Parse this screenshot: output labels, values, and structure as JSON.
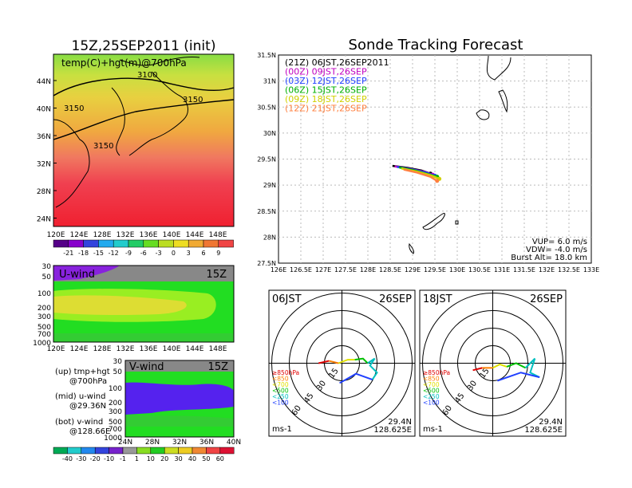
{
  "left_title": "15Z,25SEP2011 (init)",
  "right_title": "Sonde Tracking Forecast",
  "map_panel": {
    "label": "temp(C)+hgt(m)@700hPa",
    "contour_labels": [
      "3100",
      "3150",
      "3150",
      "3150"
    ],
    "lat_ticks": [
      "44N",
      "40N",
      "36N",
      "32N",
      "28N",
      "24N"
    ],
    "lon_ticks": [
      "120E",
      "124E",
      "128E",
      "132E",
      "136E",
      "140E",
      "144E",
      "148E"
    ],
    "colorbar_ticks": [
      "-21",
      "-18",
      "-15",
      "-12",
      "-9",
      "-6",
      "-3",
      "0",
      "3",
      "6",
      "9"
    ]
  },
  "u_panel": {
    "label": "U-wind",
    "time": "15Z",
    "p_ticks": [
      "30",
      "50",
      "100",
      "200",
      "300",
      "500",
      "700",
      "1000"
    ],
    "lon_ticks": [
      "120E",
      "124E",
      "128E",
      "132E",
      "136E",
      "140E",
      "144E",
      "148E"
    ]
  },
  "v_panel": {
    "label": "V-wind",
    "time": "15Z",
    "p_ticks": [
      "30",
      "50",
      "100",
      "200",
      "300",
      "500",
      "700",
      "1000"
    ],
    "lat_ticks": [
      "24N",
      "28N",
      "32N",
      "36N",
      "40N"
    ]
  },
  "wind_colorbar_ticks": [
    "-40",
    "-30",
    "-20",
    "-10",
    "-1",
    "1",
    "10",
    "20",
    "30",
    "40",
    "50",
    "60"
  ],
  "notes": [
    {
      "line1": "(up) tmp+hgt",
      "line2": "@700hPa"
    },
    {
      "line1": "(mid) u-wind",
      "line2": "@29.36N"
    },
    {
      "line1": "(bot) v-wind",
      "line2": "@128.66E"
    }
  ],
  "track_panel": {
    "legend": [
      {
        "text": "(21Z) 06JST,26SEP2011",
        "color": "#000000"
      },
      {
        "text": "(00Z) 09JST,26SEP",
        "color": "#c000c0"
      },
      {
        "text": "(03Z) 12JST,26SEP",
        "color": "#2040ff"
      },
      {
        "text": "(06Z) 15JST,26SEP",
        "color": "#00b000"
      },
      {
        "text": "(09Z) 18JST,26SEP",
        "color": "#d0d000"
      },
      {
        "text": "(12Z) 21JST,26SEP",
        "color": "#ff8040"
      }
    ],
    "lat_ticks": [
      "31.5N",
      "31N",
      "30.5N",
      "30N",
      "29.5N",
      "29N",
      "28.5N",
      "28N",
      "27.5N"
    ],
    "lon_ticks": [
      "126E",
      "126.5E",
      "127E",
      "127.5E",
      "128E",
      "128.5E",
      "129E",
      "129.5E",
      "130E",
      "130.5E",
      "131E",
      "131.5E",
      "132E",
      "132.5E",
      "133E"
    ],
    "params": [
      "VUP= 6.0 m/s",
      "VDW= -4.0 m/s",
      "Burst Alt= 18.0 km"
    ]
  },
  "chart_data": [
    {
      "type": "line",
      "title": "Sonde Tracking Forecast",
      "xlim": [
        126,
        133
      ],
      "ylim": [
        27.5,
        31.5
      ],
      "series": [
        {
          "name": "(21Z) 06JST,26SEP2011",
          "x": [
            128.55,
            128.9,
            129.2,
            129.4
          ],
          "y": [
            29.37,
            29.33,
            29.28,
            29.22
          ]
        },
        {
          "name": "(00Z) 09JST,26SEP",
          "x": [
            128.6,
            128.95,
            129.25,
            129.45
          ],
          "y": [
            29.36,
            29.31,
            29.26,
            29.2
          ]
        },
        {
          "name": "(03Z) 12JST,26SEP",
          "x": [
            128.65,
            129.0,
            129.3,
            129.5
          ],
          "y": [
            29.35,
            29.3,
            29.24,
            29.18
          ]
        },
        {
          "name": "(06Z) 15JST,26SEP",
          "x": [
            128.7,
            129.05,
            129.35,
            129.55
          ],
          "y": [
            29.34,
            29.28,
            29.21,
            29.16
          ]
        },
        {
          "name": "(09Z) 18JST,26SEP",
          "x": [
            128.75,
            129.1,
            129.4,
            129.6
          ],
          "y": [
            29.32,
            29.26,
            29.19,
            29.12
          ]
        },
        {
          "name": "(12Z) 21JST,26SEP",
          "x": [
            128.8,
            129.1,
            129.4,
            129.55
          ],
          "y": [
            29.3,
            29.24,
            29.16,
            29.08
          ]
        }
      ]
    },
    {
      "type": "line",
      "title": "06JST 26SEP",
      "subtitle": "29.4N 128.625E",
      "unit": "ms-1",
      "rings": [
        "15",
        "30",
        "45",
        "60"
      ],
      "levels": [
        {
          "name": "≥850hPa",
          "color": "#e00000"
        },
        {
          "name": "<850",
          "color": "#ff8000"
        },
        {
          "name": "<700",
          "color": "#e0e000"
        },
        {
          "name": "<500",
          "color": "#00c000"
        },
        {
          "name": "<250",
          "color": "#00c0c0"
        },
        {
          "name": "<100",
          "color": "#2040ff"
        }
      ]
    },
    {
      "type": "line",
      "title": "18JST 26SEP",
      "subtitle": "29.4N 128.625E",
      "unit": "ms-1",
      "rings": [
        "15",
        "30",
        "45",
        "60"
      ],
      "levels": [
        {
          "name": "≥850hPa",
          "color": "#e00000"
        },
        {
          "name": "<850",
          "color": "#ff8000"
        },
        {
          "name": "<700",
          "color": "#e0e000"
        },
        {
          "name": "<500",
          "color": "#00c000"
        },
        {
          "name": "<250",
          "color": "#00c0c0"
        },
        {
          "name": "<100",
          "color": "#2040ff"
        }
      ]
    }
  ]
}
